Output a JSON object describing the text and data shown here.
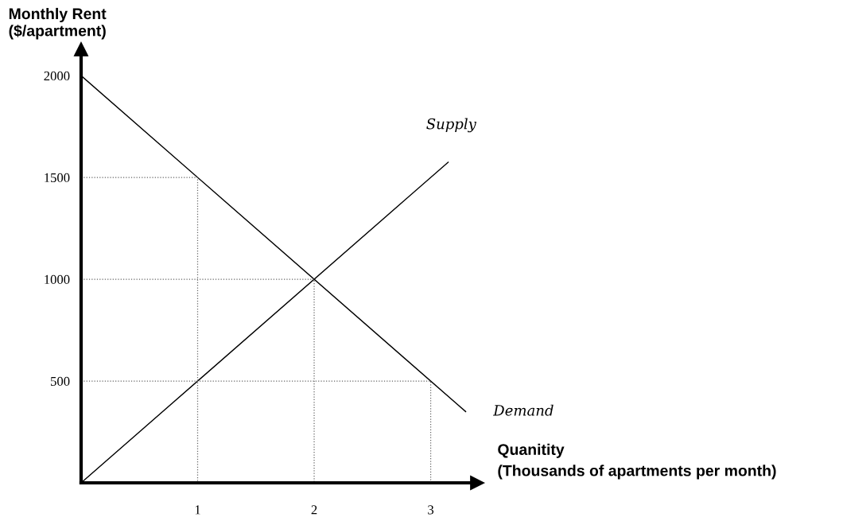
{
  "chart_data": {
    "type": "line",
    "xlabel": "Quanitity\n(Thousands of apartments per month)",
    "ylabel": "Monthly Rent\n($/apartment)",
    "xlim": [
      0,
      3.4
    ],
    "ylim": [
      0,
      2130
    ],
    "xticks": [
      1,
      2,
      3
    ],
    "yticks": [
      500,
      1000,
      1500,
      2000
    ],
    "grid": false,
    "legend": false,
    "marker": "none",
    "series": [
      {
        "name": "Demand",
        "color": "#000000",
        "line_style": "solid",
        "x": [
          0,
          3.3
        ],
        "values": [
          2000,
          350
        ]
      },
      {
        "name": "Supply",
        "color": "#000000",
        "line_style": "solid",
        "x": [
          0,
          3.15
        ],
        "values": [
          0,
          1575
        ]
      },
      {
        "color": "#666666",
        "line_style": "dotted",
        "x": [
          0,
          1,
          1
        ],
        "values": [
          1500,
          1500,
          0
        ]
      },
      {
        "color": "#666666",
        "line_style": "dotted",
        "x": [
          0,
          2,
          2
        ],
        "values": [
          1000,
          1000,
          0
        ]
      },
      {
        "color": "#666666",
        "line_style": "dotted",
        "x": [
          0,
          3,
          3
        ],
        "values": [
          500,
          500,
          0
        ]
      }
    ]
  }
}
